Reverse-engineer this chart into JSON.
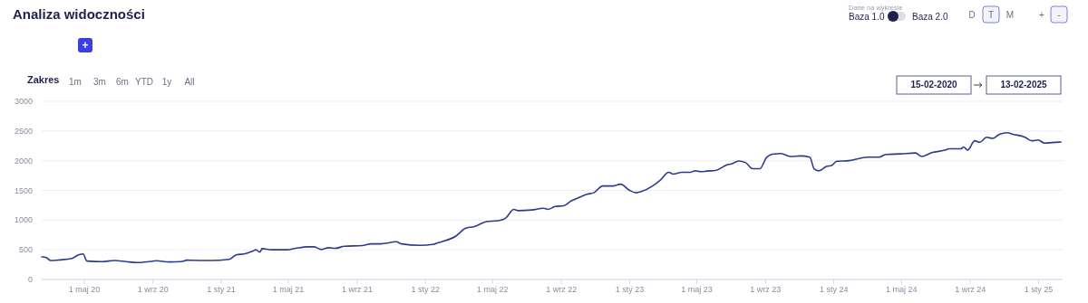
{
  "chart_data": {
    "type": "line",
    "title": "Analiza widoczności",
    "annotations": [
      "+",
      "Zakres",
      "1m",
      "3m",
      "6m",
      "YTD",
      "1y",
      "All",
      "Dane na wykresie",
      "Baza 1.0",
      "Baza 2.0",
      "D",
      "T",
      "M",
      "+",
      "-",
      "15-02-2020",
      "13-02-2025"
    ],
    "series": [
      {
        "color": "#2f3a8f",
        "x": [
          "2020-02-15",
          "2020-02-23",
          "2020-03-02",
          "2020-03-18",
          "2020-04-09",
          "2020-04-22",
          "2020-04-29",
          "2020-05-06",
          "2020-06-02",
          "2020-06-24",
          "2020-07-15",
          "2020-08-04",
          "2020-08-28",
          "2020-09-07",
          "2020-09-30",
          "2020-10-21",
          "2020-11-01",
          "2020-11-22",
          "2020-12-13",
          "2021-01-15",
          "2021-01-29",
          "2021-02-11",
          "2021-02-27",
          "2021-03-04",
          "2021-03-11",
          "2021-03-15",
          "2021-04-01",
          "2021-04-28",
          "2021-05-14",
          "2021-06-05",
          "2021-06-16",
          "2021-06-29",
          "2021-07-12",
          "2021-07-24",
          "2021-08-09",
          "2021-09-10",
          "2021-09-26",
          "2021-10-13",
          "2021-11-10",
          "2021-11-19",
          "2021-12-22",
          "2022-01-14",
          "2022-01-24",
          "2022-02-25",
          "2022-03-13",
          "2022-03-29",
          "2022-04-20",
          "2022-05-11",
          "2022-05-24",
          "2022-06-08",
          "2022-06-16",
          "2022-07-10",
          "2022-07-31",
          "2022-08-08",
          "2022-08-21",
          "2022-09-05",
          "2022-09-18",
          "2022-10-04",
          "2022-10-17",
          "2022-10-29",
          "2022-11-14",
          "2022-12-03",
          "2022-12-16",
          "2023-01-01",
          "2023-01-13",
          "2023-01-22",
          "2023-02-11",
          "2023-02-24",
          "2023-03-12",
          "2023-03-20",
          "2023-04-04",
          "2023-04-20",
          "2023-04-28",
          "2023-05-08",
          "2023-05-19",
          "2023-06-05",
          "2023-06-24",
          "2023-07-02",
          "2023-07-15",
          "2023-07-27",
          "2023-08-09",
          "2023-08-22",
          "2023-09-02",
          "2023-09-13",
          "2023-09-29",
          "2023-10-16",
          "2023-11-02",
          "2023-11-19",
          "2023-11-27",
          "2023-12-05",
          "2023-12-19",
          "2023-12-28",
          "2024-01-06",
          "2024-01-28",
          "2024-03-01",
          "2024-03-22",
          "2024-04-03",
          "2024-04-29",
          "2024-05-26",
          "2024-06-06",
          "2024-06-24",
          "2024-07-19",
          "2024-07-25",
          "2024-08-15",
          "2024-08-20",
          "2024-08-27",
          "2024-09-09",
          "2024-09-18",
          "2024-09-30",
          "2024-10-11",
          "2024-10-23",
          "2024-11-06",
          "2024-11-16",
          "2024-12-07",
          "2024-12-20",
          "2024-12-31",
          "2025-01-12",
          "2025-01-25",
          "2025-02-10"
        ],
        "values": [
          380,
          370,
          320,
          330,
          355,
          420,
          430,
          310,
          300,
          320,
          300,
          285,
          305,
          315,
          295,
          300,
          325,
          320,
          320,
          340,
          420,
          430,
          480,
          500,
          460,
          520,
          500,
          500,
          525,
          550,
          550,
          505,
          535,
          525,
          560,
          570,
          600,
          600,
          635,
          600,
          575,
          590,
          620,
          735,
          860,
          890,
          975,
          990,
          1030,
          1180,
          1160,
          1170,
          1200,
          1180,
          1230,
          1240,
          1320,
          1385,
          1435,
          1460,
          1575,
          1575,
          1605,
          1500,
          1460,
          1480,
          1575,
          1665,
          1805,
          1775,
          1805,
          1805,
          1830,
          1815,
          1825,
          1840,
          1930,
          1945,
          1995,
          1970,
          1865,
          1865,
          2045,
          2110,
          2120,
          2070,
          2080,
          2060,
          1860,
          1830,
          1905,
          1920,
          1990,
          2000,
          2060,
          2060,
          2105,
          2115,
          2130,
          2070,
          2135,
          2180,
          2200,
          2200,
          2230,
          2180,
          2335,
          2310,
          2395,
          2375,
          2445,
          2470,
          2445,
          2400,
          2335,
          2350,
          2295,
          2305,
          2315
        ]
      }
    ],
    "xlim": [
      "2020-02-15",
      "2025-02-13"
    ],
    "xticks": [
      {
        "value": "2020-05-01",
        "label": "1 maj 20"
      },
      {
        "value": "2020-09-01",
        "label": "1 wrz 20"
      },
      {
        "value": "2021-01-01",
        "label": "1 sty 21"
      },
      {
        "value": "2021-05-01",
        "label": "1 maj 21"
      },
      {
        "value": "2021-09-01",
        "label": "1 wrz 21"
      },
      {
        "value": "2022-01-01",
        "label": "1 sty 22"
      },
      {
        "value": "2022-05-01",
        "label": "1 maj 22"
      },
      {
        "value": "2022-09-01",
        "label": "1 wrz 22"
      },
      {
        "value": "2023-01-01",
        "label": "1 sty 23"
      },
      {
        "value": "2023-05-01",
        "label": "1 maj 23"
      },
      {
        "value": "2023-09-01",
        "label": "1 wrz 23"
      },
      {
        "value": "2024-01-01",
        "label": "1 sty 24"
      },
      {
        "value": "2024-05-01",
        "label": "1 maj 24"
      },
      {
        "value": "2024-09-01",
        "label": "1 wrz 24"
      },
      {
        "value": "2025-01-01",
        "label": "1 sty 25"
      }
    ],
    "ylim": [
      0,
      3000
    ],
    "yticks": [
      0,
      500,
      1000,
      1500,
      2000,
      2500,
      3000
    ],
    "grid": "y",
    "marker": "none",
    "line_style": "solid"
  }
}
